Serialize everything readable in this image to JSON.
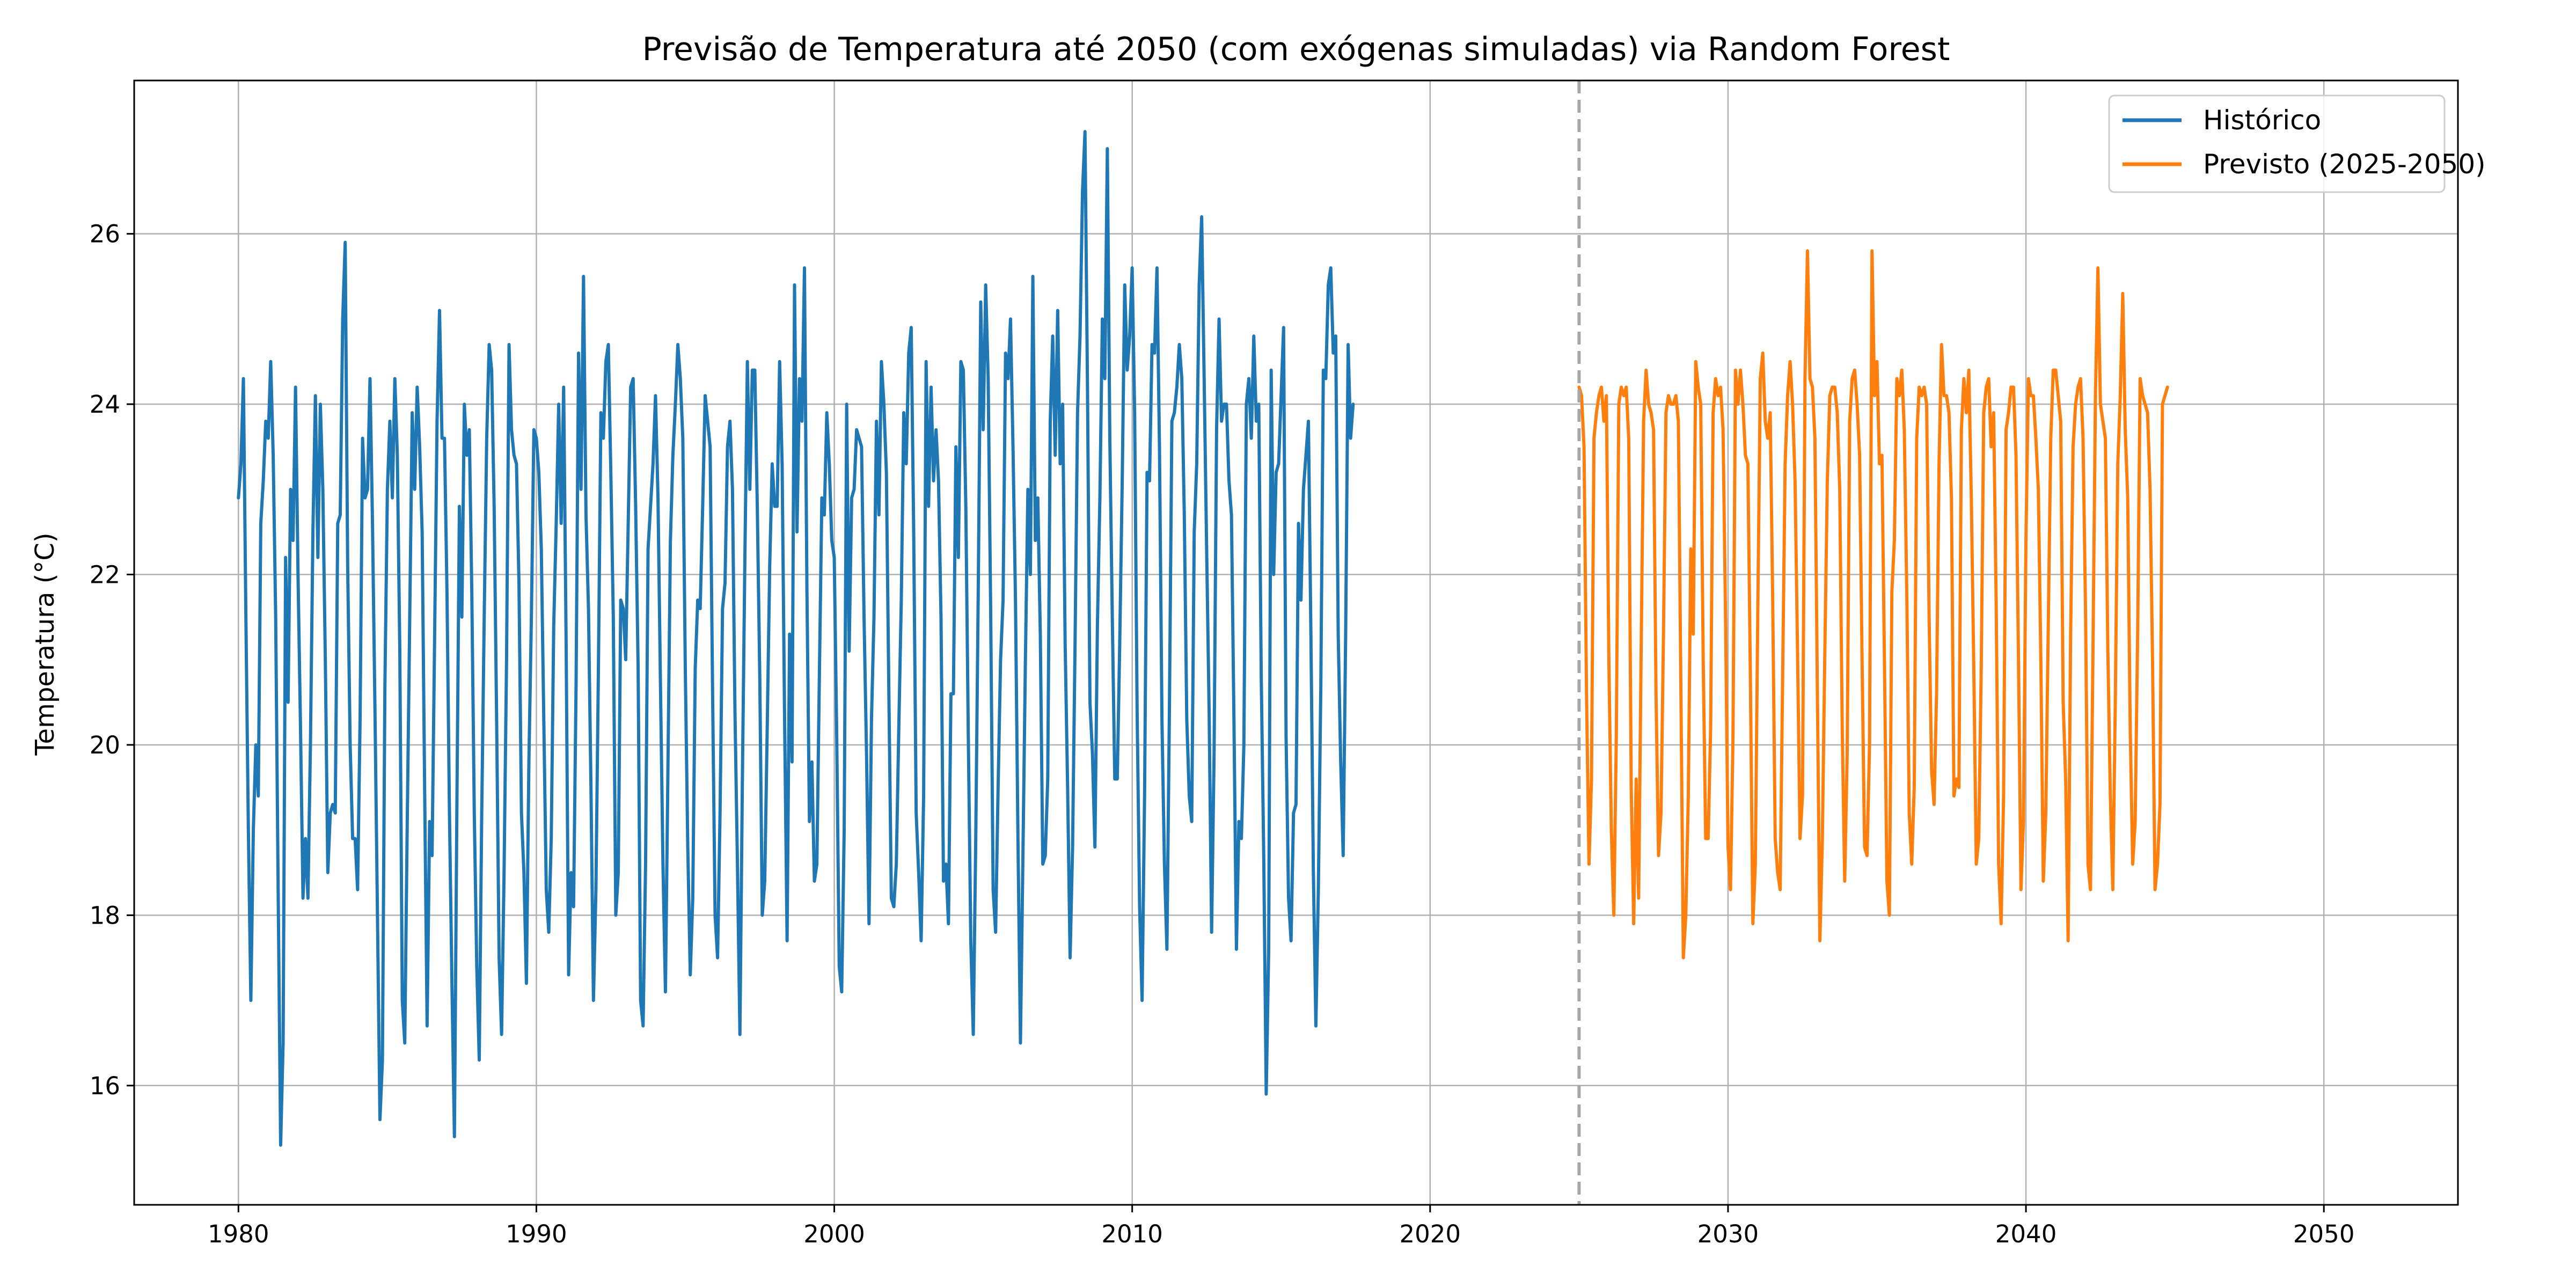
{
  "chart_data": {
    "type": "line",
    "title": "Previsão de Temperatura até 2050 (com exógenas simuladas) via Random Forest",
    "xlabel": "",
    "ylabel": "Temperatura (°C)",
    "xlim": [
      1976.5,
      2054.5
    ],
    "ylim": [
      14.6,
      27.8
    ],
    "x_ticks": [
      1980,
      1990,
      2000,
      2010,
      2020,
      2030,
      2040,
      2050
    ],
    "y_ticks": [
      16,
      18,
      20,
      22,
      24,
      26
    ],
    "grid": true,
    "legend_position": "top-right",
    "forecast_start_marker": 2025,
    "series": [
      {
        "name": "Histórico",
        "color": "#1f77b4",
        "x_start": 1980.0,
        "step": 0.08333,
        "values": [
          22.9,
          23.3,
          24.3,
          21.5,
          19.0,
          17.0,
          19.0,
          20.0,
          19.4,
          22.6,
          23.1,
          23.8,
          23.6,
          24.5,
          23.4,
          21.5,
          18.3,
          15.3,
          16.5,
          22.2,
          20.5,
          23.0,
          22.4,
          24.2,
          22.0,
          20.2,
          18.2,
          18.9,
          18.2,
          20.0,
          22.5,
          24.1,
          22.2,
          24.0,
          23.0,
          21.0,
          18.5,
          19.2,
          19.3,
          19.2,
          22.6,
          22.7,
          25.0,
          25.9,
          22.1,
          20.0,
          18.9,
          18.9,
          18.3,
          20.3,
          23.6,
          22.9,
          23.0,
          24.3,
          22.6,
          20.4,
          18.0,
          15.6,
          16.3,
          20.7,
          23.0,
          23.8,
          22.9,
          24.3,
          23.4,
          21.1,
          17.0,
          16.5,
          19.1,
          21.5,
          23.9,
          23.0,
          24.2,
          23.5,
          22.5,
          19.5,
          16.7,
          19.1,
          18.7,
          21.2,
          23.8,
          25.1,
          23.6,
          23.6,
          21.8,
          19.2,
          17.2,
          15.4,
          19.3,
          22.8,
          21.5,
          24.0,
          23.4,
          23.7,
          21.8,
          19.2,
          17.4,
          16.3,
          19.2,
          21.5,
          23.6,
          24.7,
          24.4,
          22.8,
          20.3,
          17.5,
          16.6,
          18.5,
          21.0,
          24.7,
          23.7,
          23.4,
          23.3,
          21.9,
          19.2,
          18.5,
          17.2,
          19.8,
          21.5,
          23.7,
          23.6,
          23.2,
          22.3,
          20.3,
          18.3,
          17.8,
          18.9,
          21.4,
          22.6,
          24.0,
          22.6,
          24.2,
          21.2,
          17.3,
          18.5,
          18.1,
          20.7,
          24.6,
          23.0,
          25.5,
          22.7,
          21.6,
          19.5,
          17.0,
          18.3,
          20.9,
          23.9,
          23.6,
          24.5,
          24.7,
          23.2,
          21.5,
          18.0,
          18.5,
          21.7,
          21.6,
          21.0,
          22.6,
          24.2,
          24.3,
          22.8,
          20.9,
          17.0,
          16.7,
          18.6,
          22.3,
          22.8,
          23.3,
          24.1,
          22.9,
          20.7,
          18.6,
          17.1,
          19.7,
          22.4,
          23.4,
          24.0,
          24.7,
          24.3,
          23.6,
          20.9,
          18.8,
          17.3,
          18.2,
          20.9,
          21.7,
          21.6,
          22.8,
          24.1,
          23.8,
          23.5,
          20.6,
          18.0,
          17.5,
          19.2,
          21.6,
          21.9,
          23.5,
          23.8,
          23.0,
          20.4,
          18.6,
          16.6,
          19.6,
          22.2,
          24.5,
          23.0,
          24.4,
          24.4,
          22.8,
          20.8,
          18.0,
          18.4,
          20.2,
          22.1,
          23.3,
          22.8,
          22.8,
          24.5,
          23.3,
          20.3,
          17.7,
          21.3,
          19.8,
          25.4,
          22.5,
          24.3,
          23.8,
          25.6,
          21.8,
          19.1,
          19.8,
          18.4,
          18.6,
          20.8,
          22.9,
          22.7,
          23.9,
          23.3,
          22.4,
          22.2,
          20.1,
          17.4,
          17.1,
          19.0,
          24.0,
          21.1,
          22.9,
          23.0,
          23.7,
          23.6,
          23.5,
          21.5,
          19.9,
          17.9,
          20.3,
          21.5,
          23.8,
          22.7,
          24.5,
          24.0,
          23.2,
          20.6,
          18.2,
          18.1,
          18.6,
          20.2,
          21.7,
          23.9,
          23.3,
          24.6,
          24.9,
          22.5,
          19.2,
          18.5,
          17.7,
          19.4,
          24.5,
          22.8,
          24.2,
          23.1,
          23.7,
          23.1,
          21.5,
          18.4,
          18.6,
          17.9,
          20.6,
          20.6,
          23.5,
          22.2,
          24.5,
          24.4,
          22.8,
          20.1,
          17.7,
          16.6,
          18.9,
          21.8,
          25.2,
          23.7,
          25.4,
          24.3,
          21.6,
          18.3,
          17.8,
          19.5,
          21.0,
          21.7,
          24.6,
          24.3,
          25.0,
          23.5,
          21.7,
          18.9,
          16.5,
          18.7,
          21.0,
          23.0,
          22.0,
          25.5,
          22.4,
          22.9,
          21.3,
          18.6,
          18.7,
          19.6,
          23.8,
          24.8,
          23.4,
          25.1,
          23.3,
          24.0,
          21.2,
          19.5,
          17.5,
          18.8,
          21.2,
          23.9,
          24.8,
          26.5,
          27.2,
          24.2,
          20.5,
          19.9,
          18.8,
          21.4,
          22.9,
          25.0,
          24.3,
          27.0,
          23.6,
          21.5,
          19.6,
          19.6,
          21.2,
          23.1,
          25.4,
          24.4,
          24.8,
          25.6,
          23.9,
          20.4,
          18.1,
          17.0,
          19.4,
          23.2,
          23.1,
          24.7,
          24.6,
          25.6,
          23.5,
          20.3,
          18.6,
          17.6,
          20.4,
          23.8,
          23.9,
          24.2,
          24.7,
          24.3,
          22.7,
          20.3,
          19.4,
          19.1,
          22.5,
          23.3,
          25.4,
          26.2,
          24.3,
          22.3,
          20.4,
          17.8,
          19.9,
          23.7,
          25.0,
          23.8,
          24.0,
          24.0,
          23.1,
          22.7,
          20.3,
          17.6,
          19.1,
          18.9,
          20.0,
          24.0,
          24.3,
          23.6,
          24.8,
          23.8,
          24.0,
          20.8,
          18.7,
          15.9,
          17.6,
          24.4,
          22.0,
          23.2,
          23.3,
          24.1,
          24.9,
          20.1,
          18.2,
          17.7,
          19.2,
          19.3,
          22.6,
          21.7,
          23.0,
          23.4,
          23.8,
          21.3,
          18.5,
          16.7,
          18.3,
          20.7,
          24.4,
          24.3,
          25.4,
          25.6,
          24.6,
          24.8,
          21.3,
          19.8,
          18.7,
          21.3,
          24.7,
          23.6,
          24.0
        ]
      },
      {
        "name": "Previsto (2025-2050)",
        "color": "#ff7f0e",
        "x_start": 2025.0,
        "step": 0.08333,
        "values": [
          24.2,
          24.1,
          23.5,
          20.6,
          18.6,
          19.6,
          23.6,
          23.9,
          24.1,
          24.2,
          23.8,
          24.1,
          21.0,
          19.0,
          18.0,
          20.1,
          24.0,
          24.2,
          24.1,
          24.2,
          23.6,
          19.5,
          17.9,
          19.6,
          18.2,
          21.1,
          23.8,
          24.4,
          24.0,
          23.9,
          23.7,
          20.6,
          18.7,
          19.2,
          21.3,
          23.9,
          24.1,
          24.0,
          24.0,
          24.1,
          23.8,
          20.7,
          17.5,
          18.0,
          19.4,
          22.3,
          21.3,
          24.5,
          24.2,
          24.0,
          21.0,
          18.9,
          18.9,
          20.2,
          23.9,
          24.3,
          24.1,
          24.2,
          23.7,
          21.5,
          18.8,
          18.3,
          20.1,
          24.4,
          24.0,
          24.4,
          24.0,
          23.4,
          23.3,
          20.8,
          17.9,
          18.6,
          21.6,
          24.3,
          24.6,
          23.8,
          23.6,
          23.9,
          21.7,
          18.9,
          18.5,
          18.3,
          20.8,
          23.3,
          24.1,
          24.5,
          24.0,
          23.1,
          21.1,
          18.9,
          19.4,
          24.3,
          25.8,
          24.3,
          24.2,
          23.6,
          20.6,
          17.7,
          18.9,
          21.1,
          23.1,
          24.1,
          24.2,
          24.2,
          23.9,
          23.0,
          20.2,
          18.4,
          19.9,
          23.8,
          24.3,
          24.4,
          24.0,
          23.4,
          21.0,
          18.8,
          18.7,
          20.0,
          25.8,
          24.1,
          24.5,
          23.3,
          23.4,
          21.0,
          18.4,
          18.0,
          21.8,
          22.4,
          24.3,
          24.1,
          24.4,
          23.7,
          21.8,
          19.2,
          18.6,
          19.5,
          23.6,
          24.2,
          24.1,
          24.2,
          24.0,
          21.5,
          19.7,
          19.3,
          20.6,
          23.3,
          24.7,
          24.1,
          24.1,
          23.9,
          22.9,
          19.4,
          19.6,
          19.5,
          23.7,
          24.3,
          23.9,
          24.4,
          22.9,
          20.9,
          18.6,
          18.9,
          20.9,
          23.9,
          24.2,
          24.3,
          23.5,
          23.9,
          21.7,
          18.6,
          17.9,
          19.4,
          23.7,
          23.9,
          24.2,
          24.2,
          23.4,
          21.0,
          18.3,
          19.1,
          22.4,
          24.3,
          24.1,
          24.1,
          23.6,
          23.0,
          21.0,
          18.4,
          19.2,
          21.4,
          23.6,
          24.4,
          24.4,
          24.1,
          23.8,
          20.5,
          19.6,
          17.7,
          21.3,
          23.5,
          24.0,
          24.2,
          24.3,
          23.6,
          21.6,
          18.6,
          18.3,
          21.1,
          24.1,
          25.6,
          24.0,
          23.8,
          23.6,
          21.1,
          19.4,
          18.3,
          20.5,
          23.3,
          24.1,
          25.3,
          23.7,
          22.9,
          20.2,
          18.6,
          19.1,
          21.3,
          24.3,
          24.1,
          24.0,
          23.9,
          23.0,
          21.0,
          18.3,
          18.6,
          19.3,
          24.0,
          24.1,
          24.2
        ]
      }
    ]
  }
}
